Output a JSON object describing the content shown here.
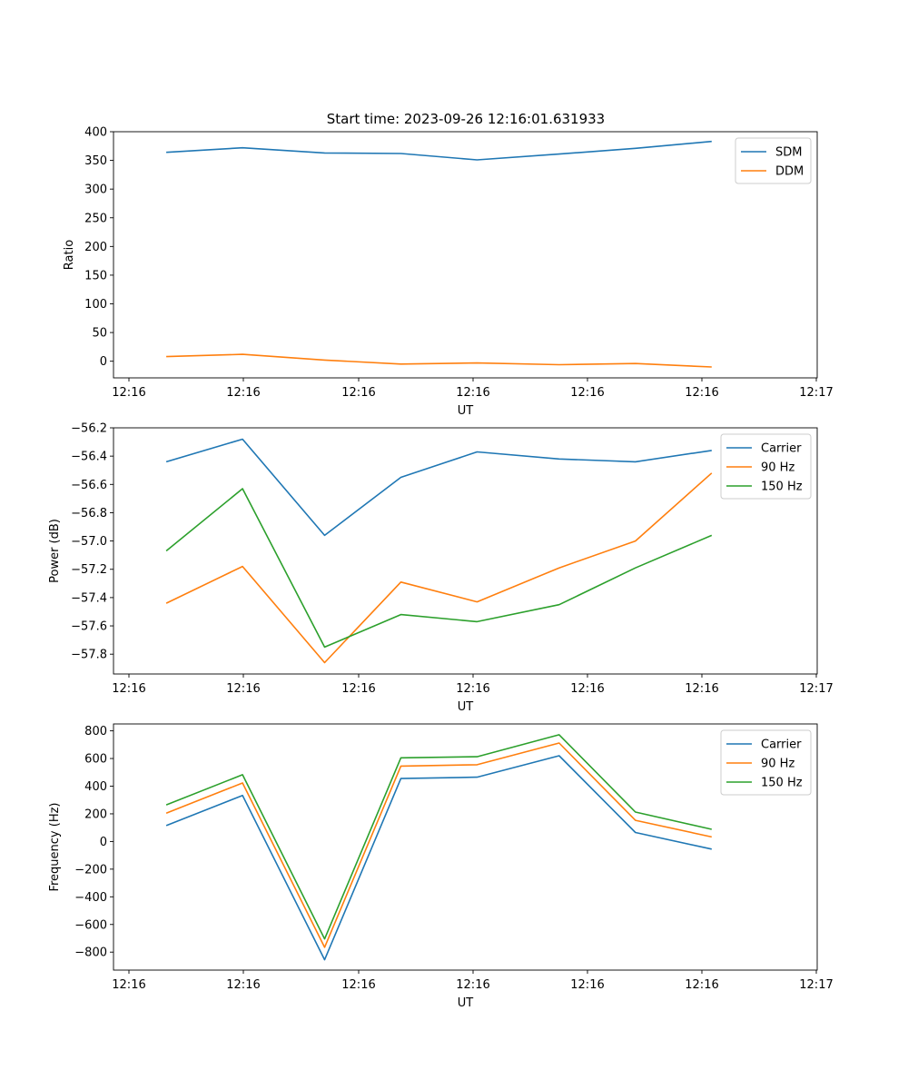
{
  "figure_title": "Start time: 2023-09-26 12:16:01.631933",
  "x_tick_labels": [
    "12:16",
    "12:16",
    "12:16",
    "12:16",
    "12:16",
    "12:16",
    "12:17"
  ],
  "colors": {
    "blue": "#1f77b4",
    "orange": "#ff7f0e",
    "green": "#2ca02c"
  },
  "chart_data": [
    {
      "type": "line",
      "title": "Start time: 2023-09-26 12:16:01.631933",
      "xlabel": "UT",
      "ylabel": "Ratio",
      "xlim": [
        -0.45,
        5.55
      ],
      "ylim": [
        -29,
        400
      ],
      "yticks": [
        0,
        50,
        100,
        150,
        200,
        250,
        300,
        350,
        400
      ],
      "ytick_labels": [
        "0",
        "50",
        "100",
        "150",
        "200",
        "250",
        "300",
        "350",
        "400"
      ],
      "x": [
        0.0,
        0.65,
        1.35,
        2.0,
        2.65,
        3.35,
        4.0,
        4.65
      ],
      "legend": "top-right",
      "series": [
        {
          "name": "SDM",
          "color": "#1f77b4",
          "values": [
            364,
            372,
            363,
            362,
            351,
            361,
            371,
            383
          ]
        },
        {
          "name": "DDM",
          "color": "#ff7f0e",
          "values": [
            8,
            12,
            2,
            -5,
            -3,
            -6,
            -4,
            -10
          ]
        }
      ]
    },
    {
      "type": "line",
      "xlabel": "UT",
      "ylabel": "Power (dB)",
      "xlim": [
        -0.45,
        5.55
      ],
      "ylim": [
        -57.94,
        -56.2
      ],
      "yticks": [
        -57.8,
        -57.6,
        -57.4,
        -57.2,
        -57.0,
        -56.8,
        -56.6,
        -56.4,
        -56.2
      ],
      "ytick_labels": [
        "−57.8",
        "−57.6",
        "−57.4",
        "−57.2",
        "−57.0",
        "−56.8",
        "−56.6",
        "−56.4",
        "−56.2"
      ],
      "x": [
        0.0,
        0.65,
        1.35,
        2.0,
        2.65,
        3.35,
        4.0,
        4.65
      ],
      "legend": "top-right",
      "series": [
        {
          "name": "Carrier",
          "color": "#1f77b4",
          "values": [
            -56.44,
            -56.28,
            -56.96,
            -56.55,
            -56.37,
            -56.42,
            -56.44,
            -56.36
          ]
        },
        {
          "name": "90 Hz",
          "color": "#ff7f0e",
          "values": [
            -57.44,
            -57.18,
            -57.86,
            -57.29,
            -57.43,
            -57.19,
            -57.0,
            -56.52
          ]
        },
        {
          "name": "150 Hz",
          "color": "#2ca02c",
          "values": [
            -57.07,
            -56.63,
            -57.75,
            -57.52,
            -57.57,
            -57.45,
            -57.19,
            -56.96
          ]
        }
      ]
    },
    {
      "type": "line",
      "xlabel": "UT",
      "ylabel": "Frequency (Hz)",
      "xlim": [
        -0.45,
        5.55
      ],
      "ylim": [
        -930,
        850
      ],
      "yticks": [
        -800,
        -600,
        -400,
        -200,
        0,
        200,
        400,
        600,
        800
      ],
      "ytick_labels": [
        "−800",
        "−600",
        "−400",
        "−200",
        "0",
        "200",
        "400",
        "600",
        "800"
      ],
      "x": [
        0.0,
        0.65,
        1.35,
        2.0,
        2.65,
        3.35,
        4.0,
        4.65
      ],
      "legend": "top-right",
      "series": [
        {
          "name": "Carrier",
          "color": "#1f77b4",
          "values": [
            115,
            333,
            -855,
            455,
            465,
            620,
            65,
            -55
          ]
        },
        {
          "name": "90 Hz",
          "color": "#ff7f0e",
          "values": [
            205,
            423,
            -765,
            545,
            555,
            712,
            153,
            33
          ]
        },
        {
          "name": "150 Hz",
          "color": "#2ca02c",
          "values": [
            265,
            483,
            -705,
            605,
            613,
            772,
            213,
            88
          ]
        }
      ]
    }
  ]
}
